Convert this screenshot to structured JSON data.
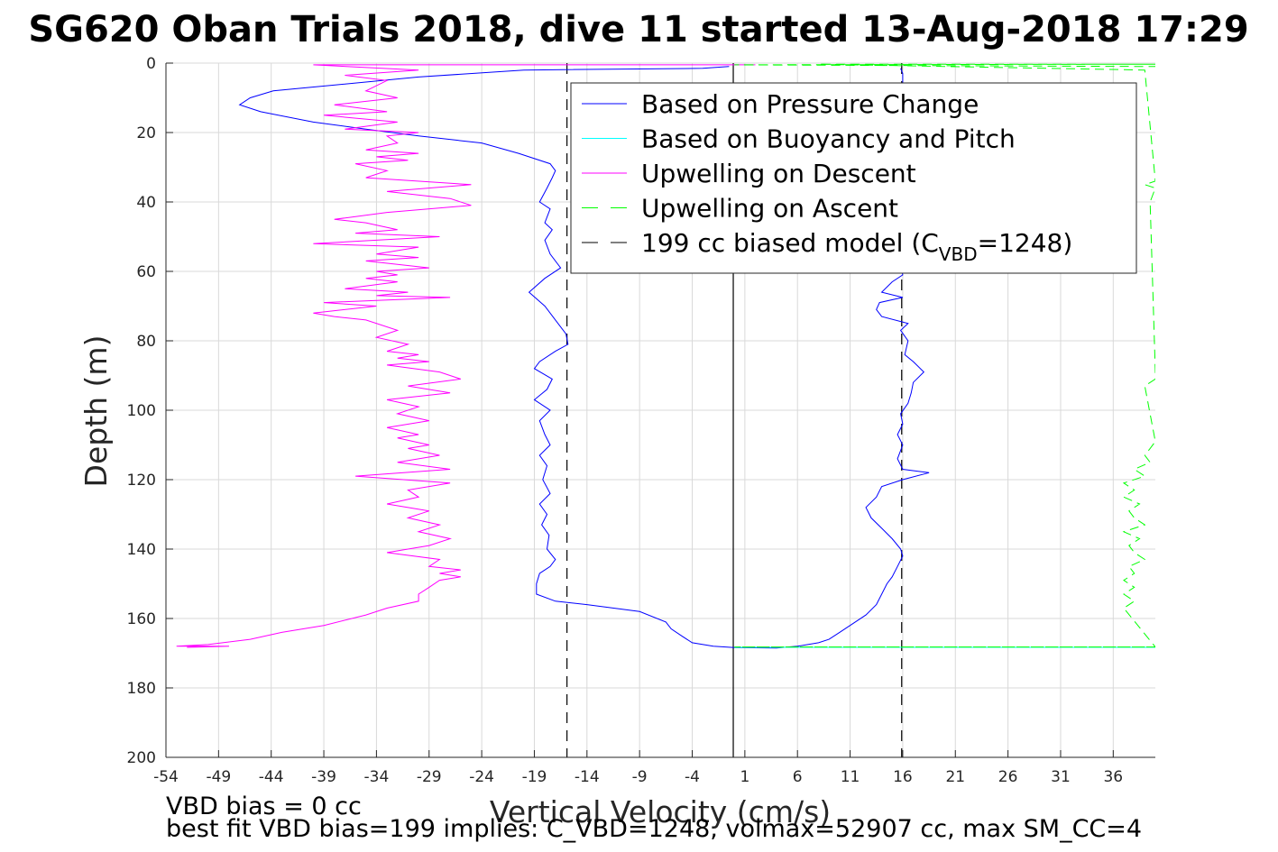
{
  "chart_data": {
    "type": "line",
    "title": "SG620 Oban Trials 2018, dive 11 started 13-Aug-2018 17:29",
    "xlabel": "Vertical Velocity (cm/s)",
    "ylabel": "Depth (m)",
    "xlim": [
      -54,
      40
    ],
    "ylim": [
      0,
      200
    ],
    "y_reversed": true,
    "grid": true,
    "x_ticks": [
      -54,
      -49,
      -44,
      -39,
      -34,
      -29,
      -24,
      -19,
      -14,
      -9,
      -4,
      1,
      6,
      11,
      16,
      21,
      26,
      31,
      36
    ],
    "y_ticks": [
      0,
      20,
      40,
      60,
      80,
      100,
      120,
      140,
      160,
      180,
      200
    ],
    "legend_position": "top-right",
    "legend": [
      {
        "label": "Based on Pressure Change",
        "color": "#0000ff",
        "dash": "solid"
      },
      {
        "label": "Based on Buoyancy and Pitch",
        "color": "#00ffff",
        "dash": "solid"
      },
      {
        "label": "Upwelling on Descent",
        "color": "#ff00ff",
        "dash": "solid"
      },
      {
        "label": "Upwelling on Ascent",
        "color": "#00ff00",
        "dash": "dashed"
      },
      {
        "label": "199 cc biased model (C",
        "sub": "VBD",
        "after": "=1248)",
        "color": "#000000",
        "dash": "dashed"
      }
    ],
    "reference_lines": [
      {
        "x": -15.9,
        "dash": "dashed",
        "color": "#000000"
      },
      {
        "x": 15.9,
        "dash": "dashed",
        "color": "#000000"
      },
      {
        "x": -0.1,
        "dash": "solid",
        "color": "#000000"
      }
    ],
    "series": [
      {
        "name": "Based on Pressure Change",
        "color": "#0000ff",
        "points": [
          [
            -0.5,
            1
          ],
          [
            -3,
            1.5
          ],
          [
            -20,
            2
          ],
          [
            -30,
            4
          ],
          [
            -43.8,
            8
          ],
          [
            -46,
            10
          ],
          [
            -47,
            12
          ],
          [
            -45,
            14
          ],
          [
            -40,
            17
          ],
          [
            -35,
            19
          ],
          [
            -30,
            21
          ],
          [
            -24,
            23
          ],
          [
            -20.5,
            26
          ],
          [
            -17.5,
            29
          ],
          [
            -17,
            31
          ],
          [
            -17.3,
            33
          ],
          [
            -17.8,
            36
          ],
          [
            -18.5,
            40
          ],
          [
            -17.5,
            42
          ],
          [
            -18,
            46
          ],
          [
            -17.3,
            48
          ],
          [
            -18,
            51
          ],
          [
            -17.5,
            55
          ],
          [
            -16.5,
            59
          ],
          [
            -18,
            62
          ],
          [
            -19.5,
            66
          ],
          [
            -18,
            70
          ],
          [
            -17,
            74
          ],
          [
            -16,
            78
          ],
          [
            -15.8,
            81
          ],
          [
            -17,
            83
          ],
          [
            -18.5,
            86
          ],
          [
            -19,
            88
          ],
          [
            -17.3,
            91
          ],
          [
            -17.8,
            94
          ],
          [
            -19,
            97
          ],
          [
            -17.5,
            100
          ],
          [
            -18.5,
            103
          ],
          [
            -18,
            107
          ],
          [
            -17.5,
            110
          ],
          [
            -18.5,
            113
          ],
          [
            -17.8,
            116
          ],
          [
            -18.2,
            120
          ],
          [
            -17.5,
            124
          ],
          [
            -18.5,
            127
          ],
          [
            -17.8,
            130
          ],
          [
            -18.3,
            133
          ],
          [
            -17.6,
            136
          ],
          [
            -17.8,
            140
          ],
          [
            -17,
            143
          ],
          [
            -17.5,
            145
          ],
          [
            -18.5,
            147
          ],
          [
            -18.8,
            150
          ],
          [
            -18.8,
            153
          ],
          [
            -17,
            155
          ],
          [
            -14,
            156
          ],
          [
            -9,
            158
          ],
          [
            -6.5,
            161
          ],
          [
            -6,
            163
          ],
          [
            -5,
            165
          ],
          [
            -4,
            167
          ],
          [
            -2,
            168
          ],
          [
            0,
            168.4
          ],
          [
            4,
            168.5
          ],
          [
            6,
            168
          ],
          [
            8,
            167
          ],
          [
            9,
            166
          ],
          [
            10,
            164
          ],
          [
            11,
            162
          ],
          [
            12.5,
            159
          ],
          [
            13.5,
            156
          ],
          [
            14,
            153
          ],
          [
            14.5,
            150
          ],
          [
            15,
            148
          ],
          [
            15.5,
            145
          ],
          [
            16,
            142
          ],
          [
            15.8,
            140
          ],
          [
            15,
            137
          ],
          [
            14,
            134
          ],
          [
            13,
            131
          ],
          [
            12.5,
            128
          ],
          [
            13.5,
            125
          ],
          [
            14,
            122
          ],
          [
            16,
            120
          ],
          [
            18.5,
            118
          ],
          [
            16,
            117
          ],
          [
            15.5,
            114
          ],
          [
            16,
            110
          ],
          [
            15.5,
            107
          ],
          [
            16,
            104
          ],
          [
            15.8,
            101
          ],
          [
            16.5,
            98
          ],
          [
            16.8,
            95
          ],
          [
            17,
            92
          ],
          [
            18,
            89
          ],
          [
            17,
            86
          ],
          [
            16.2,
            84
          ],
          [
            16.5,
            80
          ],
          [
            15.8,
            77
          ],
          [
            16.5,
            75
          ],
          [
            14,
            73
          ],
          [
            13.5,
            71
          ],
          [
            13.8,
            69
          ],
          [
            16,
            67.5
          ],
          [
            14,
            66
          ],
          [
            15,
            63
          ],
          [
            16,
            61
          ],
          [
            15.8,
            58
          ],
          [
            16.2,
            55
          ],
          [
            16,
            52
          ],
          [
            15.5,
            50
          ],
          [
            16.2,
            48
          ],
          [
            15.8,
            46
          ],
          [
            16,
            44
          ],
          [
            16.5,
            42
          ],
          [
            16,
            40
          ],
          [
            15.7,
            38
          ],
          [
            16.5,
            35
          ],
          [
            15.8,
            33
          ],
          [
            16.3,
            30
          ],
          [
            16,
            27
          ],
          [
            15.5,
            24
          ],
          [
            16.2,
            21
          ],
          [
            15.6,
            18
          ],
          [
            16,
            15
          ],
          [
            16.3,
            12
          ],
          [
            15.8,
            9
          ],
          [
            16,
            6
          ],
          [
            16,
            3
          ],
          [
            15.8,
            1.5
          ]
        ]
      },
      {
        "name": "Based on Buoyancy and Pitch",
        "color": "#00ffff",
        "points": [
          [
            0,
            168.3
          ],
          [
            40,
            168.3
          ]
        ]
      },
      {
        "name": "Upwelling on Descent",
        "color": "#ff00ff",
        "points": [
          [
            2,
            0.5
          ],
          [
            -40,
            0.5
          ],
          [
            -30,
            2
          ],
          [
            -37,
            3.5
          ],
          [
            -33,
            5
          ],
          [
            -35,
            8
          ],
          [
            -32,
            10
          ],
          [
            -38,
            12
          ],
          [
            -33,
            14
          ],
          [
            -39,
            15
          ],
          [
            -32,
            17
          ],
          [
            -37,
            19
          ],
          [
            -30,
            20
          ],
          [
            -33,
            21
          ],
          [
            -32,
            23
          ],
          [
            -35,
            25
          ],
          [
            -30,
            26
          ],
          [
            -34,
            27
          ],
          [
            -31,
            28
          ],
          [
            -36,
            29
          ],
          [
            -33,
            31
          ],
          [
            -35,
            33
          ],
          [
            -25,
            35
          ],
          [
            -33,
            37
          ],
          [
            -27,
            39
          ],
          [
            -25,
            41
          ],
          [
            -33,
            43
          ],
          [
            -38,
            45
          ],
          [
            -35,
            46
          ],
          [
            -32,
            48
          ],
          [
            -36,
            49
          ],
          [
            -28,
            50
          ],
          [
            -34,
            51
          ],
          [
            -40,
            52
          ],
          [
            -30,
            53
          ],
          [
            -34,
            55
          ],
          [
            -30,
            56
          ],
          [
            -35,
            57
          ],
          [
            -29,
            59
          ],
          [
            -34,
            60
          ],
          [
            -32,
            61
          ],
          [
            -35,
            62
          ],
          [
            -32,
            63
          ],
          [
            -37,
            65
          ],
          [
            -31,
            66
          ],
          [
            -34,
            67
          ],
          [
            -27,
            67.5
          ],
          [
            -39,
            69
          ],
          [
            -34,
            70
          ],
          [
            -40,
            72
          ],
          [
            -38,
            73
          ],
          [
            -35,
            74
          ],
          [
            -32,
            77
          ],
          [
            -34,
            79
          ],
          [
            -31,
            81
          ],
          [
            -33,
            83
          ],
          [
            -30,
            84
          ],
          [
            -32,
            85
          ],
          [
            -29,
            86
          ],
          [
            -33,
            87
          ],
          [
            -28,
            89
          ],
          [
            -26,
            91
          ],
          [
            -31,
            93
          ],
          [
            -27,
            95
          ],
          [
            -33,
            97
          ],
          [
            -30,
            99
          ],
          [
            -32,
            101
          ],
          [
            -29,
            103
          ],
          [
            -33,
            105
          ],
          [
            -30,
            107
          ],
          [
            -32,
            108
          ],
          [
            -29,
            110
          ],
          [
            -31,
            111
          ],
          [
            -28,
            113
          ],
          [
            -32,
            115
          ],
          [
            -27,
            117
          ],
          [
            -36,
            119
          ],
          [
            -27,
            121
          ],
          [
            -31,
            123
          ],
          [
            -30,
            125
          ],
          [
            -33,
            127
          ],
          [
            -29,
            129
          ],
          [
            -31,
            131
          ],
          [
            -28,
            133
          ],
          [
            -30,
            135
          ],
          [
            -27,
            137
          ],
          [
            -29,
            139
          ],
          [
            -33,
            141
          ],
          [
            -28,
            143
          ],
          [
            -29,
            145
          ],
          [
            -26,
            146
          ],
          [
            -28,
            147
          ],
          [
            -26,
            148
          ],
          [
            -28,
            149
          ],
          [
            -29,
            151
          ],
          [
            -30,
            153
          ],
          [
            -30,
            155
          ],
          [
            -33,
            157
          ],
          [
            -35,
            159
          ],
          [
            -39,
            162
          ],
          [
            -43,
            164
          ],
          [
            -46,
            166
          ],
          [
            -50,
            167.5
          ],
          [
            -53,
            168
          ],
          [
            -48,
            168
          ],
          [
            -52,
            168.3
          ]
        ]
      },
      {
        "name": "Upwelling on Ascent",
        "color": "#00ff00",
        "points": [
          [
            40,
            168.2
          ],
          [
            0,
            168.2
          ],
          [
            40,
            168.2
          ],
          [
            37,
            157
          ],
          [
            38,
            155
          ],
          [
            37,
            153
          ],
          [
            38,
            151
          ],
          [
            37,
            149
          ],
          [
            38,
            147
          ],
          [
            37.5,
            145
          ],
          [
            39,
            143
          ],
          [
            38,
            141
          ],
          [
            37.5,
            139
          ],
          [
            38.5,
            137
          ],
          [
            37,
            135
          ],
          [
            39,
            133
          ],
          [
            38,
            131
          ],
          [
            37.5,
            129
          ],
          [
            38.5,
            127
          ],
          [
            37,
            125
          ],
          [
            38,
            123
          ],
          [
            37,
            121
          ],
          [
            39,
            119
          ],
          [
            38,
            117
          ],
          [
            39.5,
            115
          ],
          [
            39,
            113
          ],
          [
            39.5,
            111
          ],
          [
            40,
            109
          ],
          [
            39,
            93
          ],
          [
            40,
            91
          ],
          [
            40,
            89
          ],
          [
            39.5,
            40
          ],
          [
            40,
            36
          ],
          [
            39,
            35
          ],
          [
            40,
            34
          ],
          [
            39,
            2
          ],
          [
            8,
            0.3
          ],
          [
            40,
            0.3
          ],
          [
            0,
            0.5
          ],
          [
            40,
            1
          ]
        ]
      }
    ]
  },
  "notes": {
    "bias": "VBD bias = 0 cc",
    "fit": "best fit VBD bias=199 implies: C_VBD=1248, volmax=52907 cc, max SM_CC=4"
  }
}
